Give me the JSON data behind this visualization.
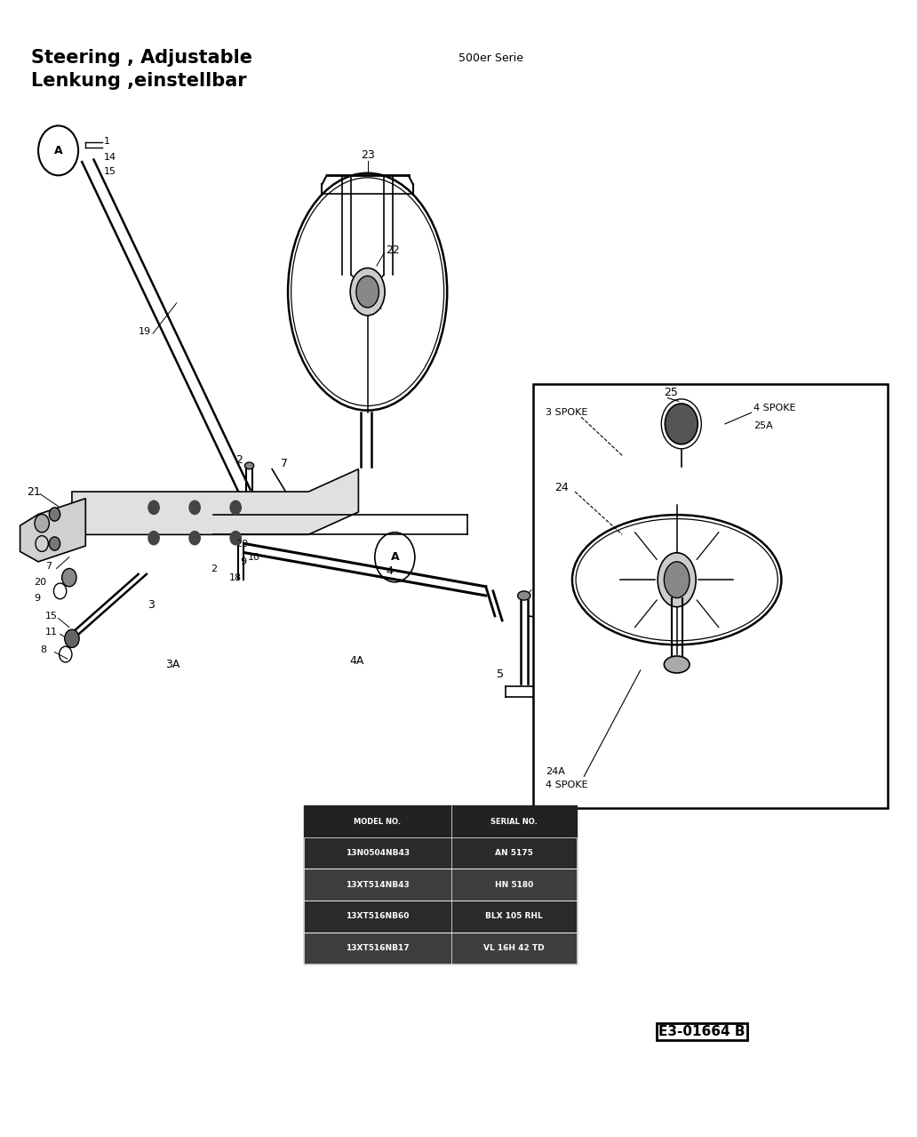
{
  "title_line1": "Steering , Adjustable",
  "title_line2": "Lenkung ,einstellbar",
  "subtitle": "500er Serie",
  "diagram_code": "E3-01664 B",
  "background_color": "#ffffff",
  "line_color": "#000000",
  "title_fontsize": 15,
  "subtitle_fontsize": 9,
  "code_fontsize": 11,
  "table_rows": [
    [
      "13N0504NB43",
      "AN 5175"
    ],
    [
      "13XT514NB43",
      "HN 5180"
    ],
    [
      "13XT516NB60",
      "BLX 105 RHL"
    ],
    [
      "13XT516NB17",
      "VL 16H 42 TD"
    ]
  ]
}
